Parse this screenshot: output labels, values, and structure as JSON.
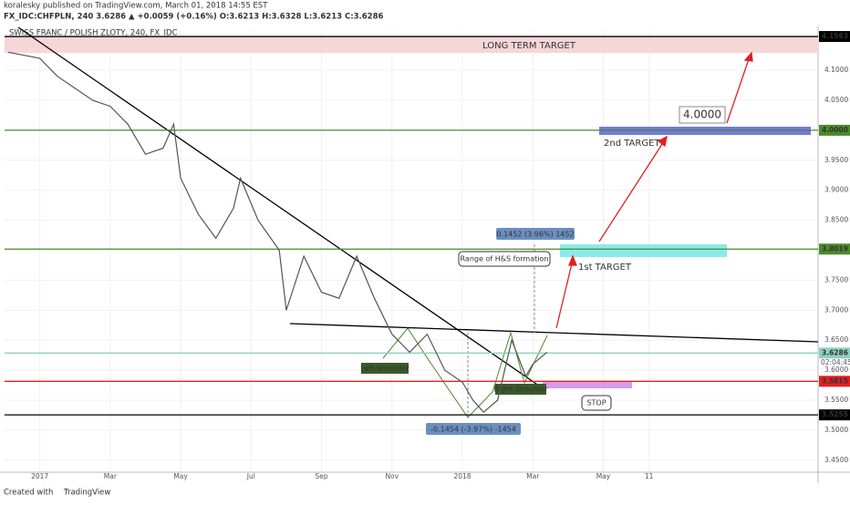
{
  "header": {
    "publisher": "koralesky published on TradingView.com, March 01, 2018 14:55 EST",
    "symbol_line": "FX_IDC:CHFPLN, 240 3.6286 ▲ +0.0059 (+0.16%) O:3.6213 H:3.6328 L:3.6213 C:3.6286",
    "chart_name": "SWISS FRANC / POLISH ZLOTY, 240, FX_IDC"
  },
  "chart_data": {
    "type": "line",
    "color": "#555555",
    "x": [
      -0.9,
      0,
      0.5,
      1,
      1.5,
      2,
      2.5,
      3,
      3.5,
      3.8,
      4,
      4.5,
      5,
      5.5,
      5.7,
      6.2,
      6.8,
      7,
      7.5,
      8,
      8.5,
      9,
      9.5,
      10,
      10.5,
      11,
      11.5,
      12,
      12.3,
      12.6,
      13,
      13.4,
      13.8,
      14,
      14.4
    ],
    "values": [
      4.13,
      4.12,
      4.09,
      4.07,
      4.05,
      4.04,
      4.01,
      3.96,
      3.97,
      4.01,
      3.92,
      3.86,
      3.82,
      3.87,
      3.92,
      3.85,
      3.8,
      3.7,
      3.79,
      3.73,
      3.72,
      3.79,
      3.72,
      3.66,
      3.63,
      3.66,
      3.6,
      3.58,
      3.55,
      3.53,
      3.55,
      3.65,
      3.59,
      3.61,
      3.63
    ],
    "xlim": [
      -1,
      22.1
    ],
    "ylim": [
      3.43,
      4.167
    ],
    "xticks": [
      {
        "value": 0,
        "label": "2017"
      },
      {
        "value": 2,
        "label": "Mar"
      },
      {
        "value": 4,
        "label": "May"
      },
      {
        "value": 6,
        "label": "Jul"
      },
      {
        "value": 8,
        "label": "Sep"
      },
      {
        "value": 10,
        "label": "Nov"
      },
      {
        "value": 12,
        "label": "2018"
      },
      {
        "value": 14,
        "label": "Mar"
      },
      {
        "value": 16,
        "label": "May"
      },
      {
        "value": 17.3,
        "label": "11"
      }
    ],
    "yticks": [
      {
        "value": 3.45,
        "label": "3.4500"
      },
      {
        "value": 3.5,
        "label": "3.5000"
      },
      {
        "value": 3.55,
        "label": "3.5500"
      },
      {
        "value": 3.6,
        "label": "3.6000"
      },
      {
        "value": 3.65,
        "label": "3.6500"
      },
      {
        "value": 3.7,
        "label": "3.7000"
      },
      {
        "value": 3.75,
        "label": "3.7500"
      },
      {
        "value": 3.8,
        "label": "3.8000"
      },
      {
        "value": 3.85,
        "label": "3.8500"
      },
      {
        "value": 3.9,
        "label": "3.9000"
      },
      {
        "value": 3.95,
        "label": "3.9500"
      },
      {
        "value": 4.0,
        "label": "4.0000"
      },
      {
        "value": 4.05,
        "label": "4.0500"
      },
      {
        "value": 4.1,
        "label": "4.1000"
      },
      {
        "value": 4.15,
        "label": "4.1500"
      }
    ],
    "levels": [
      {
        "price": 4.1563,
        "color": "#000000"
      },
      {
        "price": 4,
        "label": "4.0000",
        "color": "#4a8a2a"
      },
      {
        "price": 3.8019,
        "color": "#4a8a2a"
      },
      {
        "price": 3.6286,
        "color": "#8fd0c0"
      },
      {
        "price": 3.5815,
        "color": "#e02020"
      },
      {
        "price": 3.5255,
        "color": "#000000"
      }
    ],
    "countdown": "02:04:45",
    "annotations": {
      "long_term": "LONG TERM TARGET",
      "target_value": "4.0000",
      "second": "2nd TARGET",
      "range_measure": "0.1452 (3.96%) 1452",
      "range_note": "Range of H&S formation",
      "first": "1st TARGET",
      "left_shoulder": "Left Shoulder",
      "right_shoulder": "Right Shoulder",
      "stop": "STOP",
      "drop_measure": "-0.1454 (-3.97%) -1454"
    }
  },
  "footer": {
    "created": "Created with",
    "brand": "TradingView"
  }
}
